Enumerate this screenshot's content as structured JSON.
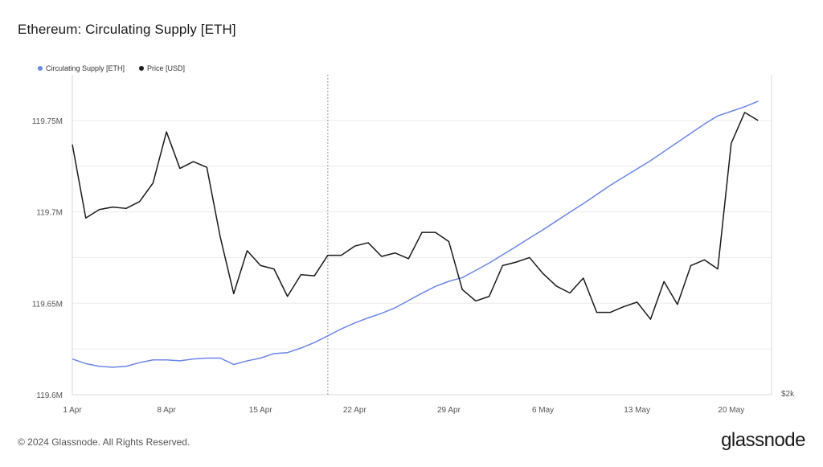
{
  "title": "Ethereum: Circulating Supply [ETH]",
  "footer": "© 2024 Glassnode. All Rights Reserved.",
  "logo": "glassnode",
  "colors": {
    "supply": "#6b86e8",
    "price": "#1a1a1a",
    "grid": "#ececec"
  },
  "chart_data": {
    "type": "line",
    "legend_position": "top-left",
    "grid": true,
    "x_ticks": [
      "1 Apr",
      "8 Apr",
      "15 Apr",
      "22 Apr",
      "29 Apr",
      "6 May",
      "13 May",
      "20 May"
    ],
    "x_range": [
      "2024-04-01",
      "2024-05-23"
    ],
    "y_ticks": [
      "119.6M",
      "119.65M",
      "119.7M",
      "119.75M"
    ],
    "ylim": [
      119.6,
      119.775
    ],
    "y_unit": "M",
    "right_axis_label": "$2k",
    "marker_date": "2024-04-20",
    "series": [
      {
        "name": "Circulating Supply [ETH]",
        "axis": "left",
        "dates": [
          "2024-04-01",
          "2024-04-02",
          "2024-04-03",
          "2024-04-04",
          "2024-04-05",
          "2024-04-06",
          "2024-04-07",
          "2024-04-08",
          "2024-04-09",
          "2024-04-10",
          "2024-04-11",
          "2024-04-12",
          "2024-04-13",
          "2024-04-14",
          "2024-04-15",
          "2024-04-16",
          "2024-04-17",
          "2024-04-18",
          "2024-04-19",
          "2024-04-20",
          "2024-04-21",
          "2024-04-22",
          "2024-04-23",
          "2024-04-24",
          "2024-04-25",
          "2024-04-26",
          "2024-04-27",
          "2024-04-28",
          "2024-04-29",
          "2024-04-30",
          "2024-05-01",
          "2024-05-02",
          "2024-05-03",
          "2024-05-04",
          "2024-05-05",
          "2024-05-06",
          "2024-05-07",
          "2024-05-08",
          "2024-05-09",
          "2024-05-10",
          "2024-05-11",
          "2024-05-12",
          "2024-05-13",
          "2024-05-14",
          "2024-05-15",
          "2024-05-16",
          "2024-05-17",
          "2024-05-18",
          "2024-05-19",
          "2024-05-20",
          "2024-05-21",
          "2024-05-22"
        ],
        "values": [
          119.6195,
          119.617,
          119.6155,
          119.615,
          119.6155,
          119.6175,
          119.619,
          119.619,
          119.6185,
          119.6195,
          119.62,
          119.62,
          119.6165,
          119.6185,
          119.62,
          119.6225,
          119.623,
          119.6255,
          119.6285,
          119.6322,
          119.636,
          119.6392,
          119.642,
          119.6445,
          119.6475,
          119.6515,
          119.6555,
          119.6592,
          119.662,
          119.664,
          119.668,
          119.672,
          119.6765,
          119.681,
          119.6857,
          119.6902,
          119.695,
          119.6998,
          119.7045,
          119.7095,
          119.7145,
          119.719,
          119.7235,
          119.728,
          119.733,
          119.738,
          119.743,
          119.748,
          119.7525,
          119.755,
          119.7575,
          119.7605
        ]
      },
      {
        "name": "Price [USD]",
        "axis": "right",
        "dates": [
          "2024-04-01",
          "2024-04-02",
          "2024-04-03",
          "2024-04-04",
          "2024-04-05",
          "2024-04-06",
          "2024-04-07",
          "2024-04-08",
          "2024-04-09",
          "2024-04-10",
          "2024-04-11",
          "2024-04-12",
          "2024-04-13",
          "2024-04-14",
          "2024-04-15",
          "2024-04-16",
          "2024-04-17",
          "2024-04-18",
          "2024-04-19",
          "2024-04-20",
          "2024-04-21",
          "2024-04-22",
          "2024-04-23",
          "2024-04-24",
          "2024-04-25",
          "2024-04-26",
          "2024-04-27",
          "2024-04-28",
          "2024-04-29",
          "2024-04-30",
          "2024-05-01",
          "2024-05-02",
          "2024-05-03",
          "2024-05-04",
          "2024-05-05",
          "2024-05-06",
          "2024-05-07",
          "2024-05-08",
          "2024-05-09",
          "2024-05-10",
          "2024-05-11",
          "2024-05-12",
          "2024-05-13",
          "2024-05-14",
          "2024-05-15",
          "2024-05-16",
          "2024-05-17",
          "2024-05-18",
          "2024-05-19",
          "2024-05-20",
          "2024-05-21",
          "2024-05-22"
        ],
        "values": [
          3645,
          3323,
          3360,
          3371,
          3365,
          3395,
          3476,
          3700,
          3540,
          3570,
          3545,
          3240,
          2992,
          3180,
          3115,
          3100,
          2980,
          3075,
          3070,
          3160,
          3160,
          3200,
          3215,
          3155,
          3170,
          3145,
          3260,
          3260,
          3220,
          3010,
          2960,
          2980,
          3115,
          3130,
          3150,
          3080,
          3025,
          2995,
          3060,
          2910,
          2910,
          2935,
          2955,
          2880,
          3045,
          2945,
          3115,
          3140,
          3100,
          3650,
          3785,
          3750
        ]
      }
    ]
  }
}
